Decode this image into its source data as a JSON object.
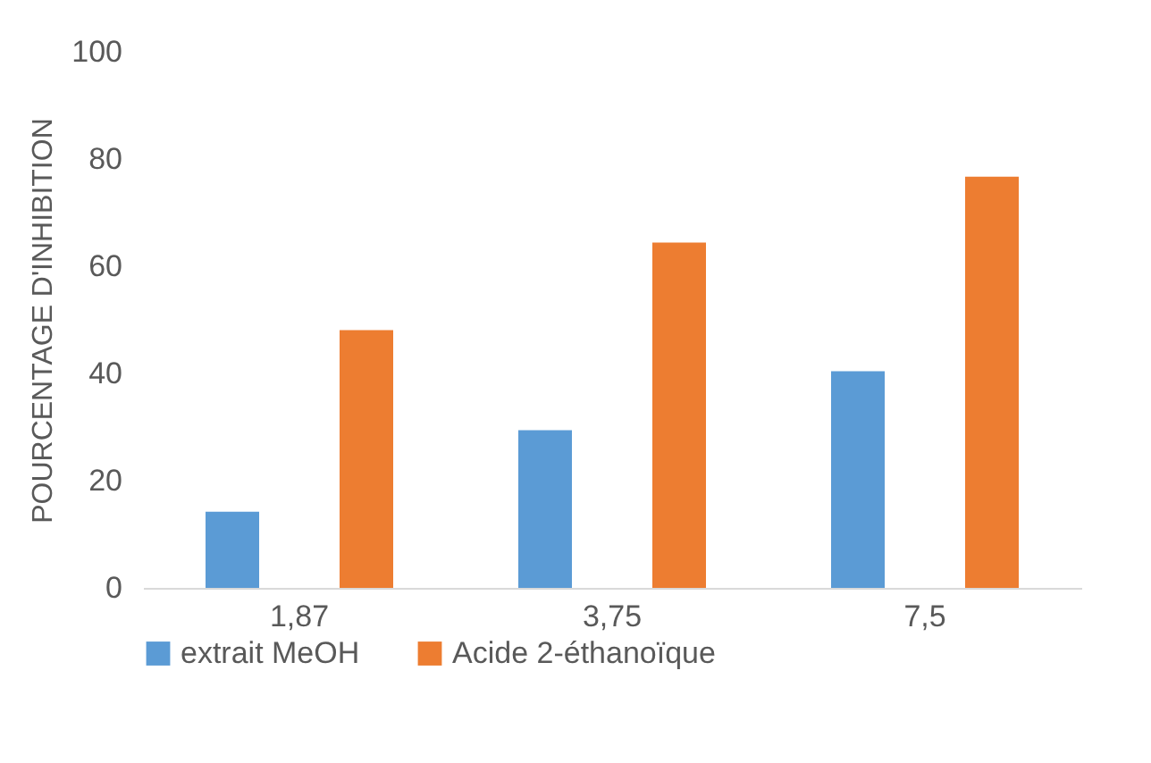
{
  "chart_data": {
    "type": "bar",
    "ylabel": "POURCENTAGE D'INHIBITION",
    "categories": [
      "1,87",
      "3,75",
      "7,5"
    ],
    "series": [
      {
        "name": "extrait MeOH",
        "color": "#5b9bd5",
        "values": [
          14.2,
          29.4,
          40.4
        ]
      },
      {
        "name": "Acide 2-éthanoïque",
        "color": "#ed7d31",
        "values": [
          48.1,
          64.4,
          76.7
        ]
      }
    ],
    "ylim": [
      0,
      100
    ],
    "yticks": [
      0,
      20,
      40,
      60,
      80,
      100
    ],
    "grid": false,
    "legend": "bottom"
  }
}
